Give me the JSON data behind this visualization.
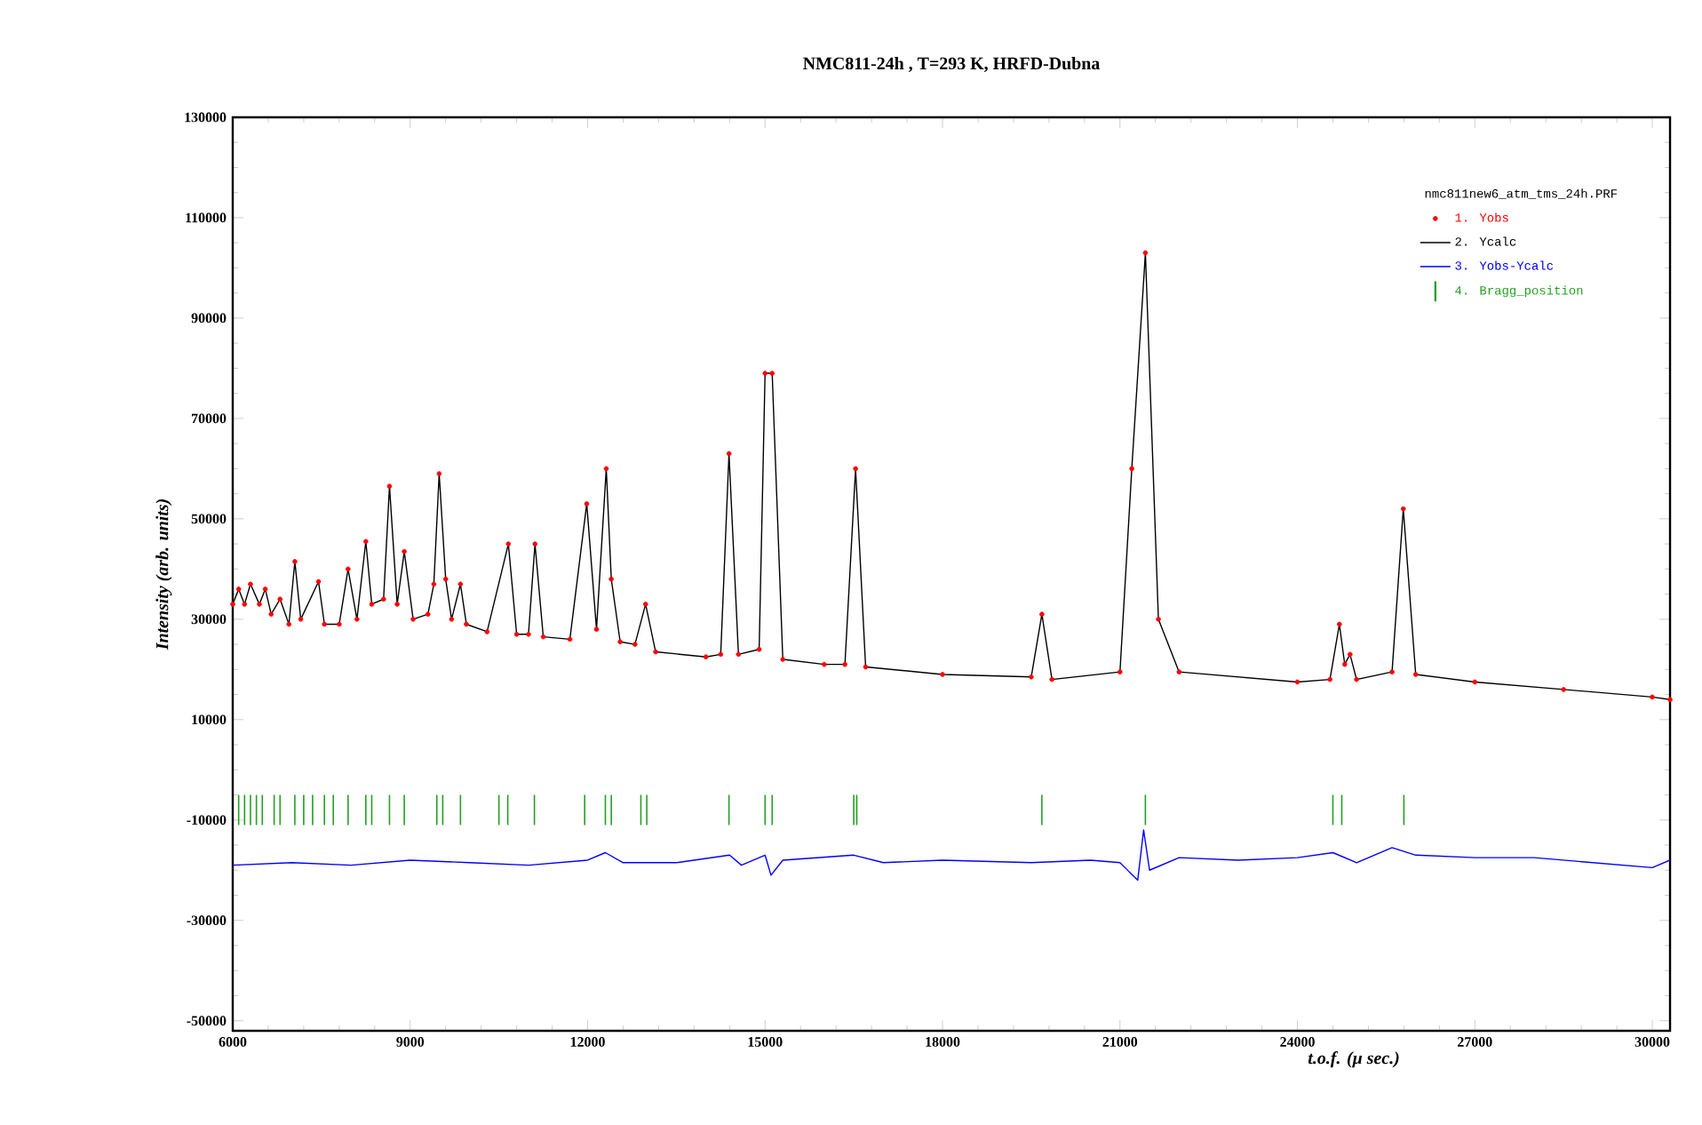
{
  "chart_data": {
    "type": "scatter",
    "title": "NMC811-24h , T=293 K, HRFD-Dubna",
    "xlabel": "t.o.f. (μ sec.)",
    "ylabel": "Intensity (arb. units)",
    "legend_title": "nmc811new6_atm_tms_24h.PRF",
    "x": [
      6000,
      6100,
      6200,
      6300,
      6450,
      6550,
      6650,
      6800,
      6950,
      7050,
      7150,
      7450,
      7550,
      7800,
      7950,
      8100,
      8250,
      8350,
      8550,
      8650,
      8780,
      8900,
      9050,
      9300,
      9400,
      9490,
      9600,
      9700,
      9850,
      9950,
      10300,
      10660,
      10800,
      11000,
      11110,
      11250,
      11700,
      11985,
      12150,
      12315,
      12400,
      12550,
      12800,
      12980,
      13150,
      14000,
      14250,
      14390,
      14550,
      14900,
      15000,
      15120,
      15300,
      16000,
      16350,
      16530,
      16700,
      18000,
      19500,
      19680,
      19850,
      21000,
      21200,
      21430,
      21650,
      22000,
      24000,
      24550,
      24710,
      24800,
      24890,
      25000,
      25600,
      25790,
      26000,
      27000,
      28500,
      30000,
      30300
    ],
    "series": [
      {
        "name": "1. Yobs",
        "marker": "circle",
        "color": "#ff0000",
        "values": [
          33000,
          36000,
          33000,
          37000,
          33000,
          36000,
          31000,
          34000,
          29000,
          41500,
          30000,
          37500,
          29000,
          29000,
          40000,
          30000,
          45500,
          33000,
          34000,
          56500,
          33000,
          43500,
          30000,
          31000,
          37000,
          59000,
          38000,
          30000,
          37000,
          29000,
          27500,
          45000,
          27000,
          27000,
          45000,
          26500,
          26000,
          53000,
          28000,
          60000,
          38000,
          25500,
          25000,
          33000,
          23500,
          22500,
          23000,
          63000,
          23000,
          24000,
          79000,
          79000,
          22000,
          21000,
          21000,
          60000,
          20500,
          19000,
          18500,
          31000,
          18000,
          19500,
          60000,
          103000,
          30000,
          19500,
          17500,
          18000,
          29000,
          21000,
          23000,
          18000,
          19500,
          52000,
          19000,
          17500,
          16000,
          14500,
          14000
        ]
      },
      {
        "name": "2. Ycalc",
        "type": "line",
        "color": "#000000",
        "values": [
          33000,
          36000,
          33000,
          37000,
          33000,
          36000,
          31000,
          34000,
          29000,
          41500,
          30000,
          37500,
          29000,
          29000,
          40000,
          30000,
          45500,
          33000,
          34000,
          56500,
          33000,
          43500,
          30000,
          31000,
          37000,
          59000,
          38000,
          30000,
          37000,
          29000,
          27500,
          45000,
          27000,
          27000,
          45000,
          26500,
          26000,
          53000,
          28000,
          60000,
          38000,
          25500,
          25000,
          33000,
          23500,
          22500,
          23000,
          63000,
          23000,
          24000,
          79000,
          79000,
          22000,
          21000,
          21000,
          60000,
          20500,
          19000,
          18500,
          31000,
          18000,
          19500,
          60000,
          103000,
          30000,
          19500,
          17500,
          18000,
          29000,
          21000,
          23000,
          18000,
          19500,
          52000,
          19000,
          17500,
          16000,
          14500,
          14000
        ]
      },
      {
        "name": "3. Yobs-Ycalc",
        "type": "line",
        "color": "#0000ff",
        "x": [
          6000,
          7000,
          8000,
          9000,
          10000,
          11000,
          12000,
          12300,
          12600,
          13500,
          14400,
          14600,
          15000,
          15100,
          15300,
          16500,
          17000,
          18000,
          19500,
          20500,
          21000,
          21300,
          21400,
          21500,
          22000,
          23000,
          24000,
          24600,
          25000,
          25600,
          26000,
          27000,
          28000,
          29000,
          30000,
          30300
        ],
        "values": [
          -19000,
          -18500,
          -19000,
          -18000,
          -18500,
          -19000,
          -18000,
          -16500,
          -18500,
          -18500,
          -17000,
          -19000,
          -17000,
          -21000,
          -18000,
          -17000,
          -18500,
          -18000,
          -18500,
          -18000,
          -18500,
          -22000,
          -12000,
          -20000,
          -17500,
          -18000,
          -17500,
          -16500,
          -18500,
          -15500,
          -17000,
          -17500,
          -17500,
          -18500,
          -19500,
          -18000
        ]
      },
      {
        "name": "4. Bragg_position",
        "type": "bar",
        "color": "#22a022",
        "x": [
          6100,
          6200,
          6300,
          6400,
          6500,
          6700,
          6800,
          7050,
          7200,
          7350,
          7550,
          7700,
          7950,
          8250,
          8350,
          8650,
          8900,
          9450,
          9550,
          9850,
          10500,
          10650,
          11100,
          11950,
          12300,
          12400,
          12900,
          13000,
          14390,
          15000,
          15120,
          16500,
          16550,
          19680,
          21430,
          24600,
          24750,
          25800
        ],
        "base": [
          -11000,
          -11000,
          -11000,
          -11000,
          -11000,
          -11000,
          -11000,
          -11000,
          -11000,
          -11000,
          -11000,
          -11000,
          -11000,
          -11000,
          -11000,
          -11000,
          -11000,
          -11000,
          -11000,
          -11000,
          -11000,
          -11000,
          -11000,
          -11000,
          -11000,
          -11000,
          -11000,
          -11000,
          -11000,
          -11000,
          -11000,
          -11000,
          -11000,
          -11000,
          -11000,
          -11000,
          -11000,
          -11000
        ],
        "values": [
          6000,
          6000,
          6000,
          6000,
          6000,
          6000,
          6000,
          6000,
          6000,
          6000,
          6000,
          6000,
          6000,
          6000,
          6000,
          6000,
          6000,
          6000,
          6000,
          6000,
          6000,
          6000,
          6000,
          6000,
          6000,
          6000,
          6000,
          6000,
          6000,
          6000,
          6000,
          6000,
          6000,
          6000,
          6000,
          6000,
          6000,
          6000
        ]
      }
    ],
    "xlim": [
      6000,
      30300
    ],
    "ylim": [
      -52000,
      130000
    ],
    "xticks": [
      6000,
      9000,
      12000,
      15000,
      18000,
      21000,
      24000,
      27000,
      30000
    ],
    "yticks": [
      -50000,
      -30000,
      -10000,
      10000,
      30000,
      50000,
      70000,
      90000,
      110000,
      130000
    ],
    "legend": "top right"
  }
}
